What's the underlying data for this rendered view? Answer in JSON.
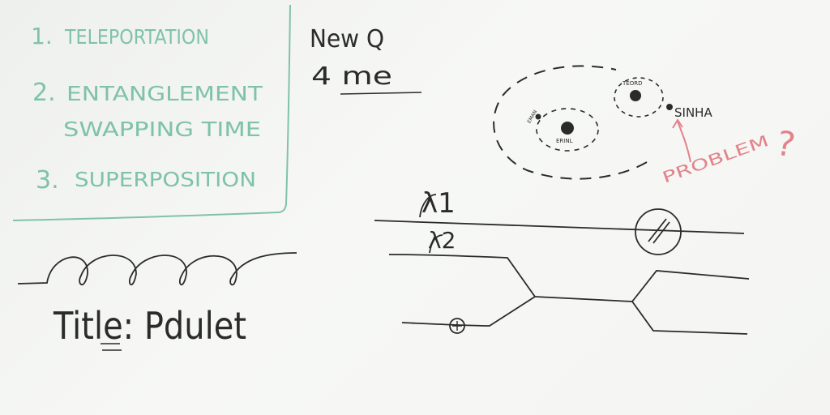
{
  "agenda": {
    "items": [
      {
        "number": "1.",
        "lines": [
          "TELEPORTATION"
        ]
      },
      {
        "number": "2.",
        "lines": [
          "ENTANGLEMENT",
          "SWAPPING TIME"
        ]
      },
      {
        "number": "3.",
        "lines": [
          "SUPERPOSITION"
        ]
      }
    ],
    "ink_color": "#7fc3a7"
  },
  "header_note": {
    "line1": "New Q",
    "line2": "4 me"
  },
  "orbit_diagram": {
    "center_label": "ERINL",
    "orbiter_label": "EMAN",
    "side_label": "TEORD",
    "outside_label": "SINHA"
  },
  "problem_note": {
    "text": "PROBLEM",
    "mark": "?",
    "ink_color": "#e2838a"
  },
  "circuit": {
    "lambda1": "λ1",
    "lambda2": "λ2"
  },
  "title_note": {
    "text": "Title: Pdulet"
  },
  "black_ink": "#2b2b2b"
}
